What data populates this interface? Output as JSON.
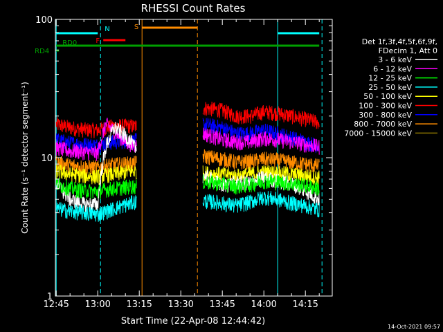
{
  "chart_data": {
    "type": "line",
    "title": "RHESSI Count Rates",
    "xlabel": "Start Time (22-Apr-08 12:44:42)",
    "ylabel": "Count Rate (s⁻¹ detector segment⁻¹)",
    "y_scale": "log",
    "ylim": [
      1,
      100
    ],
    "xlim": [
      "12:44:42",
      "14:24:42"
    ],
    "x_ticks": [
      "12:45",
      "13:00",
      "13:15",
      "13:30",
      "13:45",
      "14:00",
      "14:15"
    ],
    "y_ticks": [
      "1",
      "10",
      "100"
    ],
    "legend": {
      "position": "right",
      "header_line1": "Det 1f,3f,4f,5f,6f,9f,",
      "header_line2": "FDecim 1, Att 0"
    },
    "gaps": [
      {
        "start": "13:14",
        "end": "13:38"
      }
    ],
    "series": [
      {
        "name": "3 - 6 keV",
        "color": "#ffffff",
        "x": [
          "12:45",
          "12:50",
          "12:55",
          "13:00",
          "13:03",
          "13:06",
          "13:09",
          "13:12",
          "13:13",
          "13:38",
          "13:45",
          "13:50",
          "13:55",
          "14:00",
          "14:05",
          "14:10",
          "14:15",
          "14:20"
        ],
        "values": [
          6.5,
          5.0,
          4.6,
          4.6,
          12.0,
          16.5,
          15.0,
          13.0,
          12.0,
          7.5,
          6.3,
          6.6,
          6.6,
          7.2,
          6.8,
          6.5,
          5.8,
          5.0
        ]
      },
      {
        "name": "6 - 12 keV",
        "color": "#ff00ff",
        "x": [
          "12:45",
          "12:50",
          "12:55",
          "13:00",
          "13:03",
          "13:06",
          "13:09",
          "13:12",
          "13:13",
          "13:38",
          "13:45",
          "13:50",
          "13:55",
          "14:00",
          "14:05",
          "14:10",
          "14:15",
          "14:20"
        ],
        "values": [
          11.8,
          11.2,
          11.0,
          10.8,
          17.5,
          15.5,
          13.5,
          12.5,
          12.3,
          15.0,
          13.5,
          13.0,
          13.0,
          13.8,
          13.5,
          13.0,
          12.5,
          12.0
        ]
      },
      {
        "name": "12 - 25 keV",
        "color": "#00ff00",
        "x": [
          "12:45",
          "12:50",
          "12:55",
          "13:00",
          "13:03",
          "13:06",
          "13:09",
          "13:12",
          "13:13",
          "13:38",
          "13:45",
          "13:50",
          "13:55",
          "14:00",
          "14:05",
          "14:10",
          "14:15",
          "14:20"
        ],
        "values": [
          6.5,
          6.0,
          5.8,
          5.7,
          5.9,
          6.0,
          6.1,
          6.2,
          6.2,
          6.7,
          6.5,
          6.2,
          6.4,
          6.8,
          6.7,
          6.5,
          6.3,
          6.0
        ]
      },
      {
        "name": "25 - 50 keV",
        "color": "#00ffff",
        "x": [
          "12:45",
          "12:50",
          "12:55",
          "13:00",
          "13:03",
          "13:06",
          "13:09",
          "13:12",
          "13:13",
          "13:38",
          "13:45",
          "13:50",
          "13:55",
          "14:00",
          "14:05",
          "14:10",
          "14:15",
          "14:20"
        ],
        "values": [
          4.3,
          4.1,
          4.0,
          3.9,
          4.1,
          4.3,
          4.5,
          4.7,
          4.8,
          4.9,
          4.7,
          4.5,
          4.8,
          5.2,
          5.0,
          4.7,
          4.5,
          4.2
        ]
      },
      {
        "name": "50 - 100 keV",
        "color": "#ffff00",
        "x": [
          "12:45",
          "12:50",
          "12:55",
          "13:00",
          "13:03",
          "13:06",
          "13:09",
          "13:12",
          "13:13",
          "13:38",
          "13:45",
          "13:50",
          "13:55",
          "14:00",
          "14:05",
          "14:10",
          "14:15",
          "14:20"
        ],
        "values": [
          8.0,
          7.6,
          7.4,
          7.3,
          7.5,
          7.6,
          7.8,
          8.0,
          8.0,
          7.8,
          7.6,
          7.4,
          7.6,
          7.9,
          7.8,
          7.6,
          7.4,
          7.2
        ]
      },
      {
        "name": "100 - 300 keV",
        "color": "#ff0000",
        "x": [
          "12:45",
          "12:50",
          "12:55",
          "13:00",
          "13:03",
          "13:06",
          "13:09",
          "13:12",
          "13:13",
          "13:38",
          "13:45",
          "13:50",
          "13:55",
          "14:00",
          "14:05",
          "14:10",
          "14:15",
          "14:20"
        ],
        "values": [
          17.5,
          16.5,
          16.0,
          15.8,
          16.5,
          17.0,
          17.0,
          17.0,
          16.8,
          23.0,
          22.0,
          20.0,
          20.0,
          21.5,
          21.0,
          20.0,
          19.0,
          18.0
        ]
      },
      {
        "name": "300 - 800 keV",
        "color": "#0000ff",
        "x": [
          "12:45",
          "12:50",
          "12:55",
          "13:00",
          "13:03",
          "13:06",
          "13:09",
          "13:12",
          "13:13",
          "13:38",
          "13:45",
          "13:50",
          "13:55",
          "14:00",
          "14:05",
          "14:10",
          "14:15",
          "14:20"
        ],
        "values": [
          13.5,
          12.8,
          12.5,
          12.3,
          12.8,
          13.0,
          13.2,
          13.2,
          13.2,
          17.5,
          16.5,
          15.0,
          15.0,
          15.8,
          15.0,
          14.0,
          13.0,
          12.2
        ]
      },
      {
        "name": "800 - 7000 keV",
        "color": "#ff8c00",
        "x": [
          "12:45",
          "12:50",
          "12:55",
          "13:00",
          "13:03",
          "13:06",
          "13:09",
          "13:12",
          "13:13",
          "13:38",
          "13:45",
          "13:50",
          "13:55",
          "14:00",
          "14:05",
          "14:10",
          "14:15",
          "14:20"
        ],
        "values": [
          9.3,
          8.8,
          8.6,
          8.5,
          8.8,
          8.9,
          9.0,
          9.1,
          9.1,
          10.3,
          9.8,
          9.3,
          9.4,
          9.8,
          9.6,
          9.3,
          9.0,
          8.7
        ]
      },
      {
        "name": "7000 - 15000 keV",
        "color": "#8b7500",
        "x": [],
        "values": []
      }
    ],
    "annotations": [
      {
        "label": "RD0",
        "color": "#00a000",
        "start": "12:45",
        "end": "14:20"
      },
      {
        "label": "RD4",
        "color": "#00a000",
        "start": "12:45",
        "end": "12:46"
      },
      {
        "label": "N",
        "color": "#00ffff",
        "start": "12:45",
        "end": "13:00"
      },
      {
        "label": "N",
        "color": "#00ffff",
        "start": "14:05",
        "end": "14:20"
      },
      {
        "label": "F",
        "color": "#ff0000",
        "start": "13:02",
        "end": "13:10"
      },
      {
        "label": "S",
        "color": "#ff8c00",
        "start": "13:16",
        "end": "13:36"
      }
    ],
    "vlines": [
      {
        "at": "12:45",
        "color": "#00ffff",
        "style": "solid"
      },
      {
        "at": "13:01",
        "color": "#00ffff",
        "style": "dashed"
      },
      {
        "at": "13:16",
        "color": "#ff8c00",
        "style": "solid"
      },
      {
        "at": "13:36",
        "color": "#ff8c00",
        "style": "dashed"
      },
      {
        "at": "14:05",
        "color": "#00ffff",
        "style": "solid"
      },
      {
        "at": "14:21",
        "color": "#00ffff",
        "style": "dashed"
      }
    ]
  },
  "footer": {
    "timestamp": "14-Oct-2021 09:57"
  }
}
